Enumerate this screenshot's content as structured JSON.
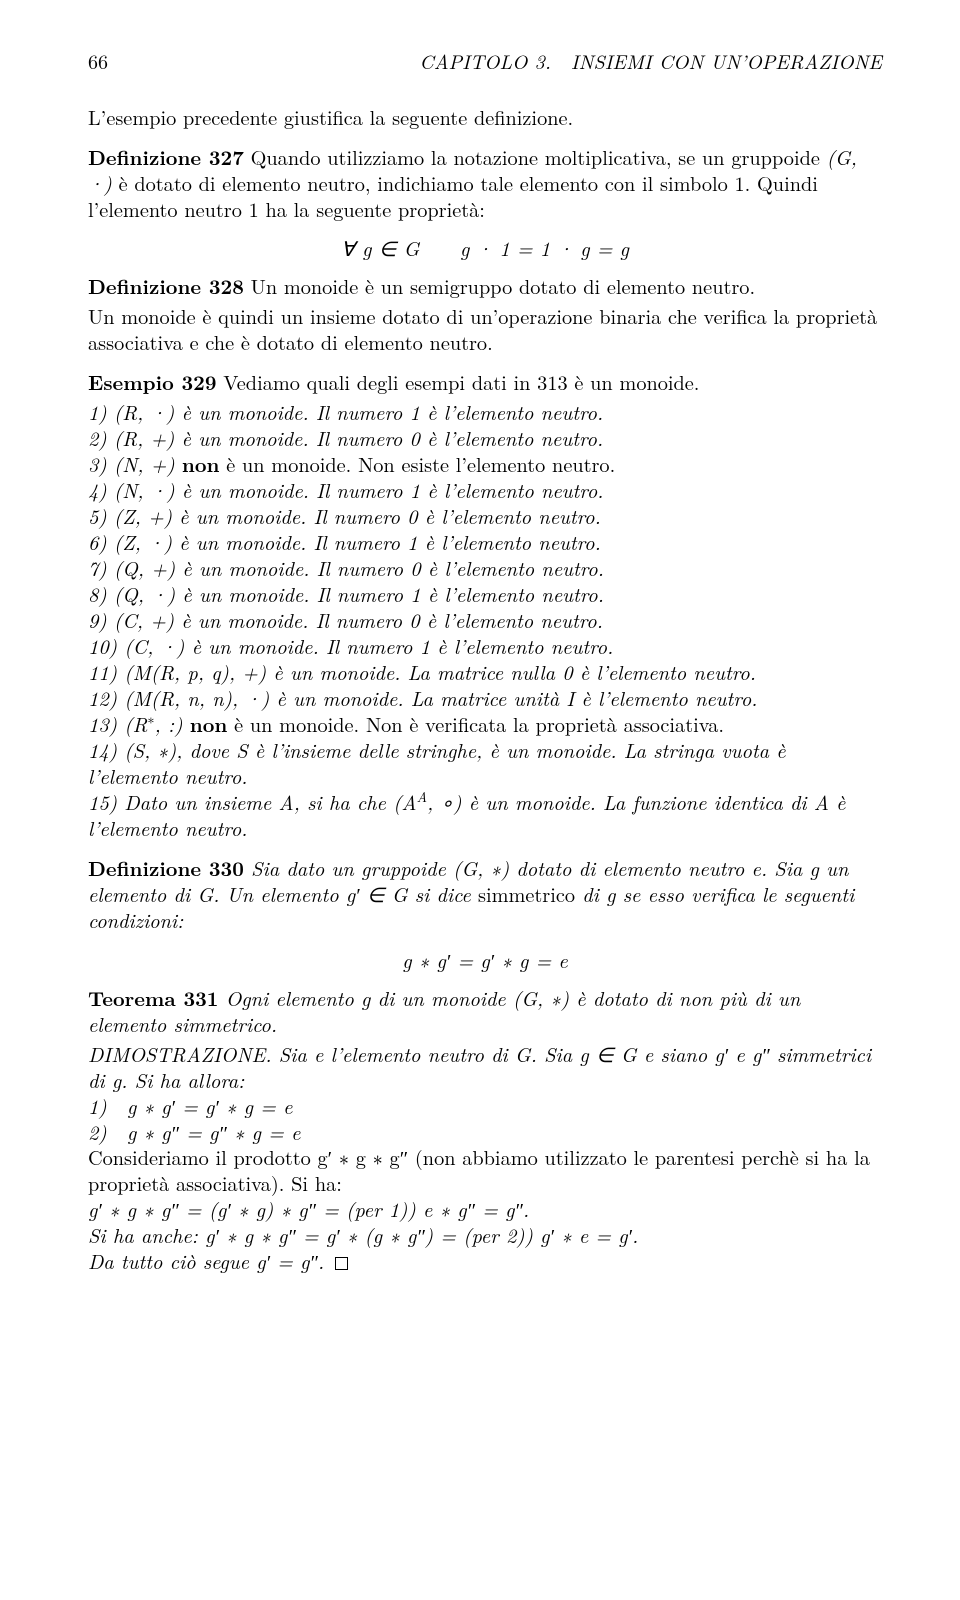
{
  "page_number": "66",
  "running_head_right": "CAPITOLO 3. INSIEMI CON UN’OPERAZIONE",
  "intro_line": "L’esempio precedente giustifica la seguente definizione.",
  "def327_label": "Definizione 327",
  "def327_body_a": " Quando utilizziamo la notazione moltiplicativa, se un gruppoide ",
  "def327_gdot": "(G, ·)",
  "def327_body_b": " è dotato di elemento neutro, indichiamo tale elemento con il simbolo 1. Quindi l’elemento neutro 1 ha la seguente proprietà:",
  "def327_eq": "∀ g ∈ G  g · 1 = 1 · g = g",
  "def328_label": "Definizione 328",
  "def328_body": " Un monoide è un semigruppo dotato di elemento neutro.",
  "monoide_followup": "Un monoide è quindi un insieme dotato di un’operazione binaria che verifica la proprietà associativa e che è dotato di elemento neutro.",
  "es329_label": "Esempio 329",
  "es329_intro": " Vediamo quali degli esempi dati in 313 è un monoide.",
  "es_items": [
    "1) (R, ·) è un monoide. Il numero 1 è l’elemento neutro.",
    "2) (R, +) è un monoide. Il numero 0 è l’elemento neutro.",
    "3) (N, +) non è un monoide. Non esiste l’elemento neutro.",
    "4) (N, ·) è un monoide. Il numero 1 è l’elemento neutro.",
    "5) (Z, +) è un monoide. Il numero 0 è l’elemento neutro.",
    "6) (Z, ·) è un monoide. Il numero 1 è l’elemento neutro.",
    "7) (Q, +) è un monoide. Il numero 0 è l’elemento neutro.",
    "8) (Q, ·) è un monoide. Il numero 1 è l’elemento neutro.",
    "9) (C, +) è un monoide. Il numero 0 è l’elemento neutro.",
    "10) (C, ·) è un monoide. Il numero 1 è l’elemento neutro.",
    "11) (M(R, p, q), +) è un monoide. La matrice nulla 0 è l’elemento neutro.",
    "12) (M(R, n, n), ·) è un monoide. La matrice unità I è l’elemento neutro."
  ],
  "es_item_13a": "13) (R",
  "es_item_13sup": "∗",
  "es_item_13b": ", :) ",
  "es_item_13_non": "non",
  "es_item_13c": " è un monoide. Non è verificata la proprietà associativa.",
  "es_item_3_pre": "3) (N, +) ",
  "es_item_3_non": "non",
  "es_item_3_post": " è un monoide. Non esiste l’elemento neutro.",
  "es_item_14": "14) (S, ∗), dove S è l’insieme delle stringhe, è un monoide. La stringa vuota è l’elemento neutro.",
  "es_item_15a": "15) Dato un insieme A, si ha che (A",
  "es_item_15supA": "A",
  "es_item_15b": ", ∘) è un monoide. La funzione identica di A è l’elemento neutro.",
  "def330_label": "Definizione 330",
  "def330_a": " Sia dato un gruppoide (G, ∗) dotato di elemento neutro e. Sia g un elemento di G. Un elemento g′ ∈ G si dice ",
  "def330_sym": "simmetrico",
  "def330_b": " di g se esso verifica le seguenti condizioni:",
  "def330_eq": "g ∗ g′ = g′ ∗ g = e",
  "teo331_label": "Teorema 331",
  "teo331_body": " Ogni elemento g di un monoide (G, ∗) è dotato di non più di un elemento simmetrico.",
  "dim_a": "DIMOSTRAZIONE. Sia e l’elemento neutro di G. Sia g ∈ G e siano g′ e g″ simmetrici di g. Si ha allora:",
  "dim_line1": "1) g ∗ g′ = g′ ∗ g = e",
  "dim_line2": "2) g ∗ g″ = g″ ∗ g = e",
  "dim_b": "Consideriamo il prodotto g′ ∗ g ∗ g″ (non abbiamo utilizzato le parentesi perchè si ha la proprietà associativa). Si ha:",
  "dim_c": "g′ ∗ g ∗ g″ = (g′ ∗ g) ∗ g″ = (per 1)) e ∗ g″ = g″.",
  "dim_d": "Si ha anche: g′ ∗ g ∗ g″ = g′ ∗ (g ∗ g″) = (per 2)) g′ ∗ e = g′.",
  "dim_e": "Da tutto ciò segue g′ = g″."
}
